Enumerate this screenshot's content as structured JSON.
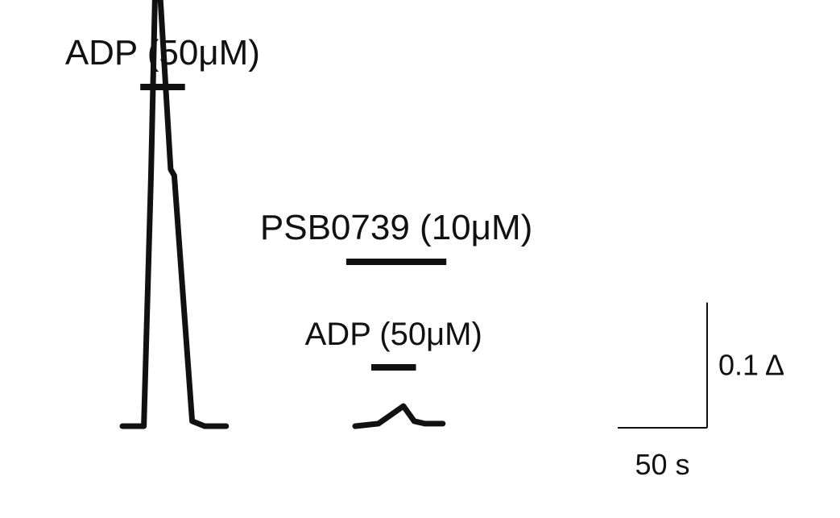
{
  "chart_data": {
    "type": "line",
    "series": [
      {
        "t": [
          0,
          12,
          16,
          19,
          27,
          29,
          39,
          46,
          58
        ],
        "values": [
          0,
          0,
          0.2,
          0.394,
          0.205,
          0.2,
          0.004,
          0,
          0
        ]
      },
      {
        "t": [
          0,
          13,
          27,
          33,
          39,
          49
        ],
        "values": [
          0,
          0.002,
          0.016,
          0.004,
          0.002,
          0.002
        ]
      }
    ],
    "applications": [
      {
        "label": "ADP (50μM)",
        "trace": 0,
        "t_start": 10,
        "t_end": 35
      },
      {
        "label": "PSB0739 (10μM)",
        "trace": 1,
        "t_start": -5,
        "t_end": 51
      },
      {
        "label": "ADP (50μM)",
        "trace": 1,
        "t_start": 9,
        "t_end": 34
      }
    ],
    "scale_bars": {
      "y": {
        "value": 0.1,
        "label": "0.1 Δ"
      },
      "x": {
        "value": 50,
        "label": "50 s"
      }
    }
  }
}
